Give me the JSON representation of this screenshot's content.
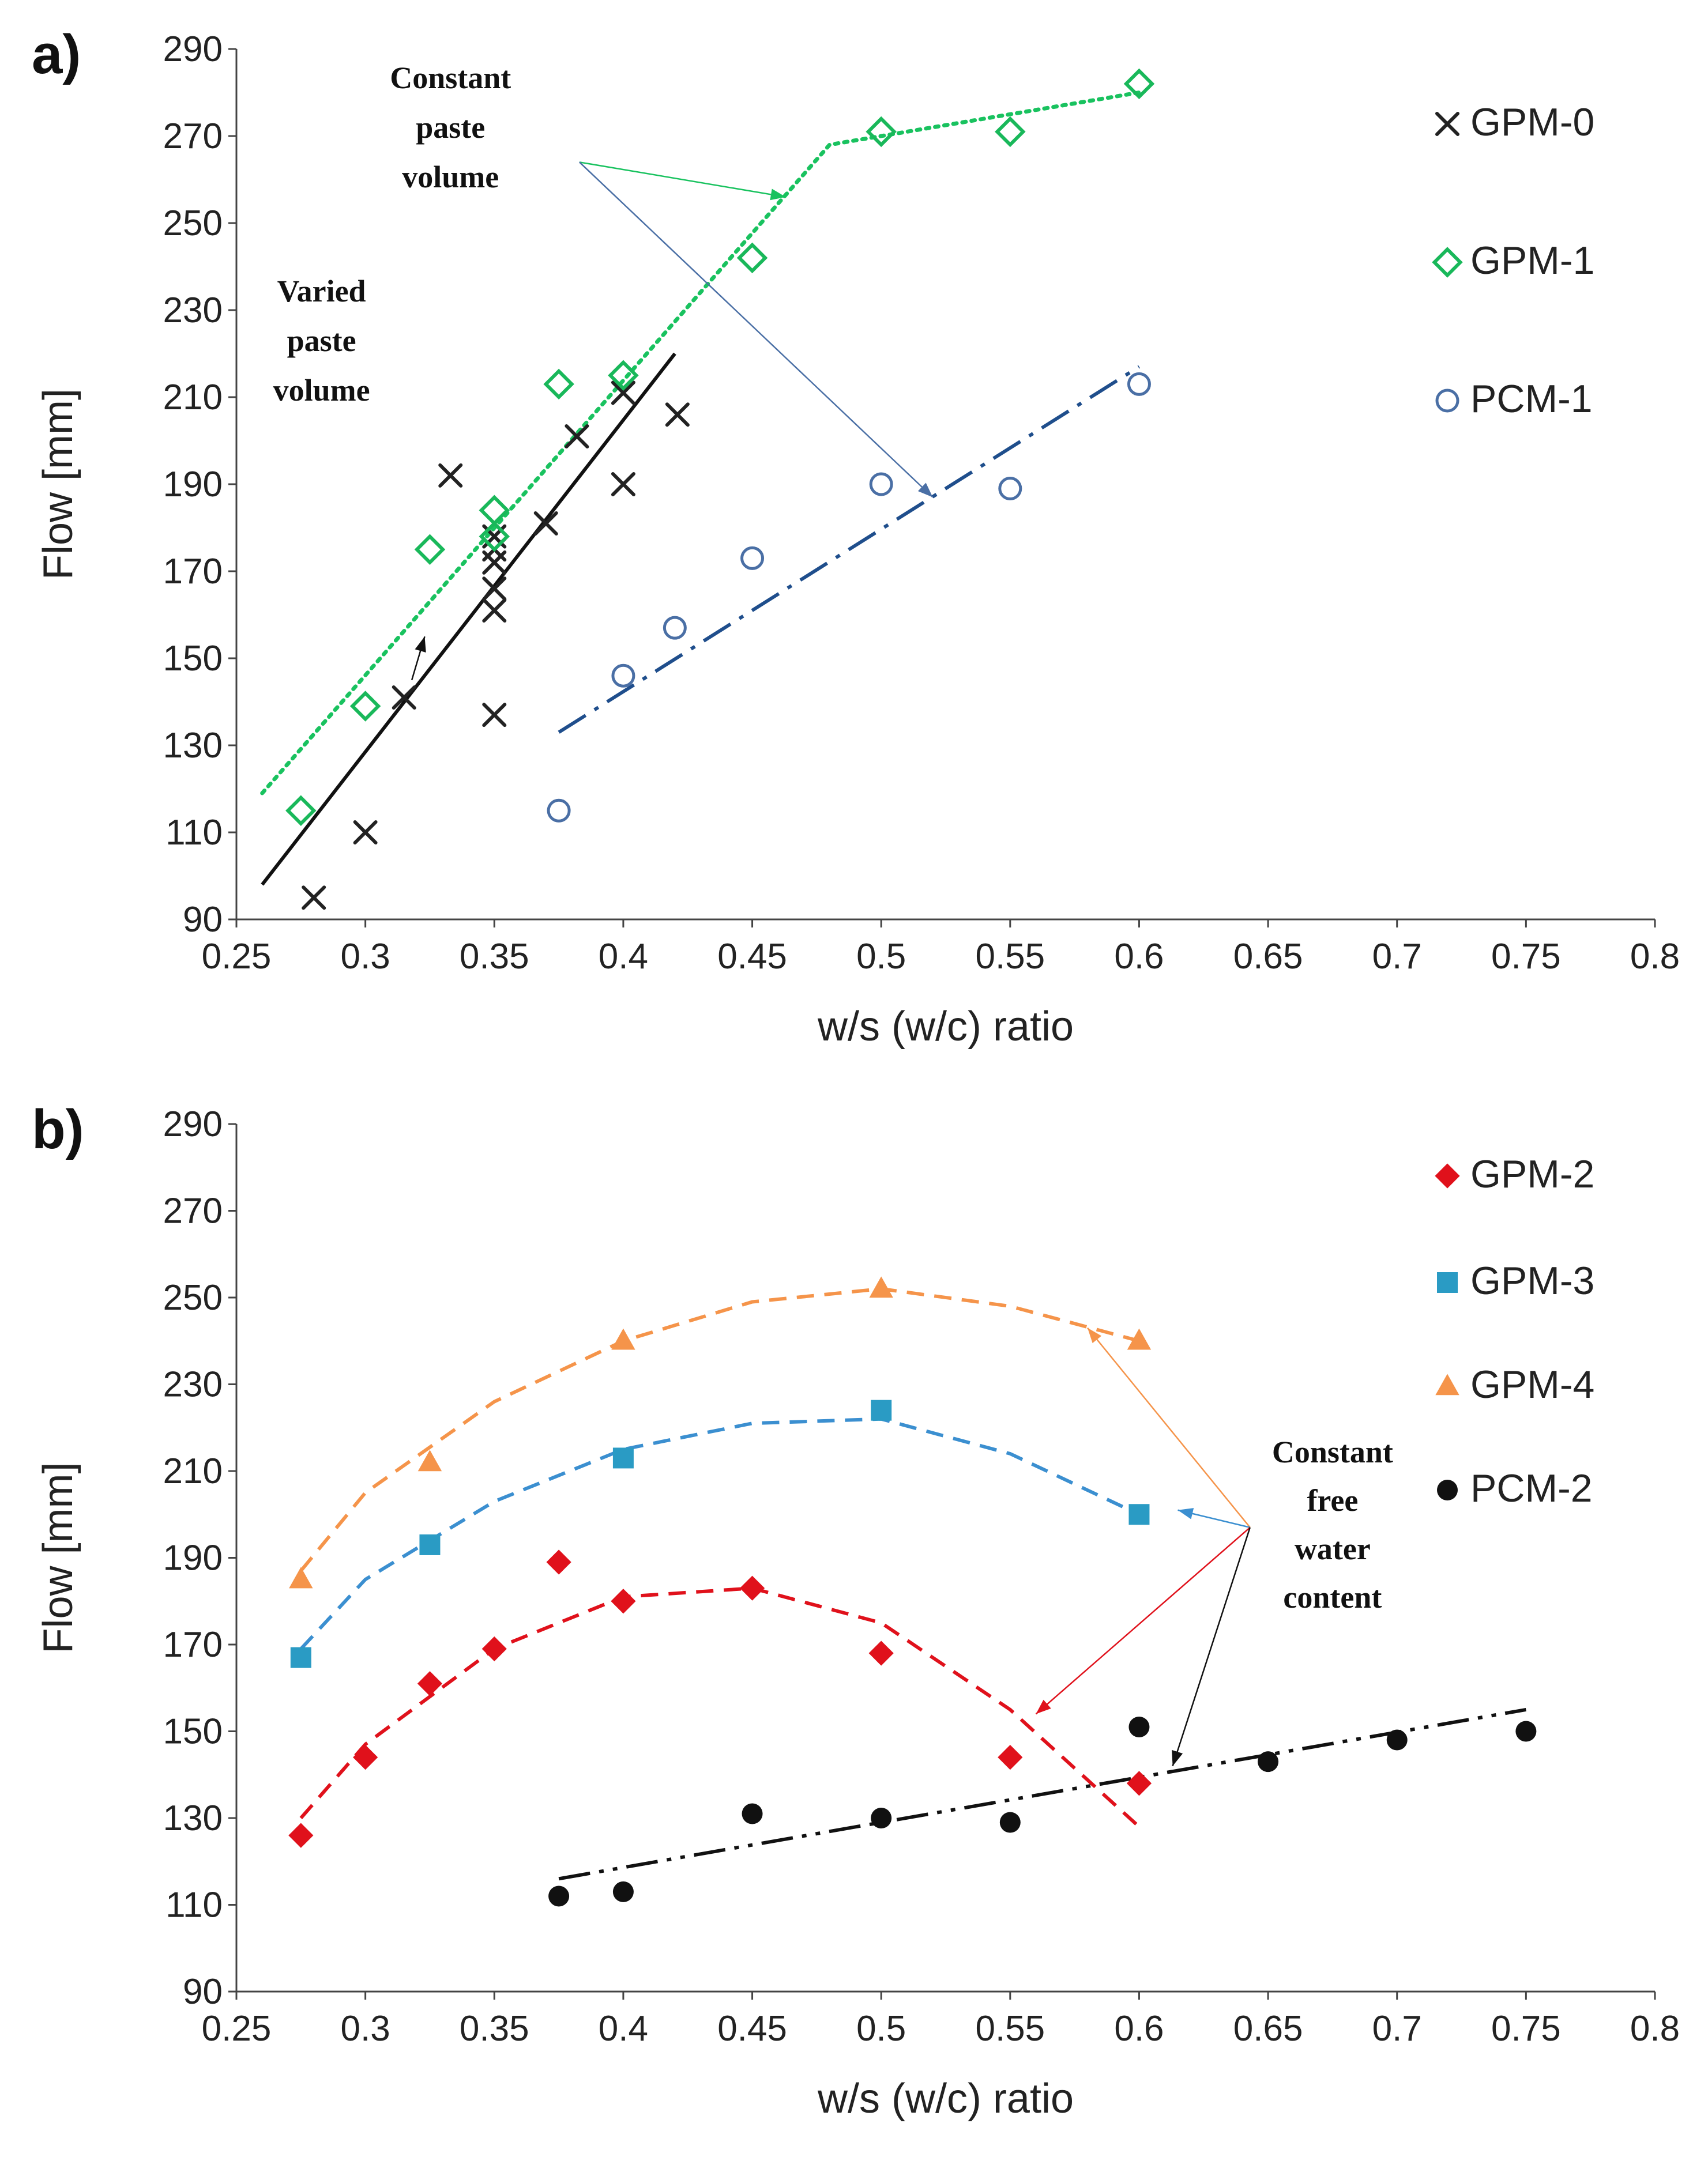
{
  "chart_data": [
    {
      "type": "scatter",
      "panel_label": "a)",
      "xlabel": "w/s (w/c) ratio",
      "ylabel": "Flow [mm]",
      "xlim": [
        0.25,
        0.8
      ],
      "ylim": [
        90,
        290
      ],
      "xticks": [
        "0.25",
        "0.3",
        "0.35",
        "0.4",
        "0.45",
        "0.5",
        "0.55",
        "0.6",
        "0.65",
        "0.7",
        "0.75",
        "0.8"
      ],
      "yticks": [
        "90",
        "110",
        "130",
        "150",
        "170",
        "190",
        "210",
        "230",
        "250",
        "270",
        "290"
      ],
      "grid": false,
      "legend_position": "top-right",
      "series": [
        {
          "name": "GPM-0",
          "marker": "x",
          "color": "#222222",
          "x": [
            0.28,
            0.3,
            0.315,
            0.333,
            0.35,
            0.35,
            0.35,
            0.35,
            0.35,
            0.35,
            0.37,
            0.382,
            0.4,
            0.4,
            0.421
          ],
          "y": [
            95,
            110,
            141,
            192,
            137,
            161,
            166,
            172,
            175,
            178,
            181,
            201,
            190,
            211,
            206
          ]
        },
        {
          "name": "GPM-1",
          "marker": "diamond-open",
          "color": "#19b85a",
          "x": [
            0.275,
            0.3,
            0.325,
            0.35,
            0.35,
            0.375,
            0.4,
            0.45,
            0.5,
            0.55,
            0.6
          ],
          "y": [
            115,
            139,
            175,
            178,
            184,
            213,
            215,
            242,
            271,
            271,
            282
          ]
        },
        {
          "name": "PCM-1",
          "marker": "circle-open",
          "color": "#4a6fa5",
          "x": [
            0.375,
            0.4,
            0.42,
            0.45,
            0.5,
            0.55,
            0.6
          ],
          "y": [
            115,
            146,
            157,
            173,
            190,
            189,
            213
          ]
        }
      ],
      "trendlines": [
        {
          "series": "GPM-0",
          "style": "solid",
          "color": "#111111",
          "x": [
            0.26,
            0.42
          ],
          "y": [
            98,
            220
          ]
        },
        {
          "series": "GPM-1",
          "style": "dotted",
          "color": "#19c25f",
          "x": [
            0.26,
            0.48,
            0.5,
            0.6
          ],
          "y": [
            119,
            268,
            270,
            280
          ]
        },
        {
          "series": "PCM-1",
          "style": "dash-dot",
          "color": "#1f4e8c",
          "x": [
            0.375,
            0.6
          ],
          "y": [
            133,
            217
          ]
        }
      ],
      "annotations": [
        {
          "lines": [
            "Constant",
            "paste",
            "volume"
          ],
          "x": 0.333,
          "y": 281
        },
        {
          "lines": [
            "Varied",
            "paste",
            "volume"
          ],
          "x": 0.283,
          "y": 232
        }
      ]
    },
    {
      "type": "scatter",
      "panel_label": "b)",
      "xlabel": "w/s (w/c) ratio",
      "ylabel": "Flow [mm]",
      "xlim": [
        0.25,
        0.8
      ],
      "ylim": [
        90,
        290
      ],
      "xticks": [
        "0.25",
        "0.3",
        "0.35",
        "0.4",
        "0.45",
        "0.5",
        "0.55",
        "0.6",
        "0.65",
        "0.7",
        "0.75",
        "0.8"
      ],
      "yticks": [
        "90",
        "110",
        "130",
        "150",
        "170",
        "190",
        "210",
        "230",
        "250",
        "270",
        "290"
      ],
      "grid": false,
      "legend_position": "top-right",
      "series": [
        {
          "name": "GPM-2",
          "marker": "diamond-filled",
          "color": "#e0111b",
          "x": [
            0.275,
            0.3,
            0.325,
            0.35,
            0.375,
            0.4,
            0.45,
            0.5,
            0.55,
            0.6
          ],
          "y": [
            126,
            144,
            161,
            169,
            189,
            180,
            183,
            168,
            144,
            138
          ]
        },
        {
          "name": "GPM-3",
          "marker": "square-filled",
          "color": "#2a9bc4",
          "x": [
            0.275,
            0.325,
            0.4,
            0.5,
            0.6
          ],
          "y": [
            167,
            193,
            213,
            224,
            200
          ]
        },
        {
          "name": "GPM-4",
          "marker": "triangle-filled",
          "color": "#f5944a",
          "x": [
            0.275,
            0.325,
            0.4,
            0.5,
            0.6
          ],
          "y": [
            185,
            212,
            240,
            252,
            240
          ]
        },
        {
          "name": "PCM-2",
          "marker": "circle-filled",
          "color": "#111111",
          "x": [
            0.375,
            0.4,
            0.45,
            0.5,
            0.55,
            0.6,
            0.65,
            0.7,
            0.75
          ],
          "y": [
            112,
            113,
            131,
            130,
            129,
            151,
            143,
            148,
            150
          ]
        }
      ],
      "trendlines": [
        {
          "series": "GPM-2",
          "style": "dashed",
          "color": "#e0111b",
          "x": [
            0.275,
            0.3,
            0.35,
            0.4,
            0.45,
            0.5,
            0.55,
            0.6
          ],
          "y": [
            130,
            147,
            169,
            181,
            183,
            175,
            155,
            128
          ]
        },
        {
          "series": "GPM-3",
          "style": "dashed",
          "color": "#3b8fd0",
          "x": [
            0.275,
            0.3,
            0.35,
            0.4,
            0.45,
            0.5,
            0.55,
            0.6
          ],
          "y": [
            169,
            185,
            203,
            215,
            221,
            222,
            214,
            200
          ]
        },
        {
          "series": "GPM-4",
          "style": "dashed",
          "color": "#f5944a",
          "x": [
            0.275,
            0.3,
            0.35,
            0.4,
            0.45,
            0.5,
            0.55,
            0.6
          ],
          "y": [
            187,
            205,
            226,
            240,
            249,
            252,
            248,
            240
          ]
        },
        {
          "series": "PCM-2",
          "style": "dash-dot-dot",
          "color": "#111111",
          "x": [
            0.375,
            0.75
          ],
          "y": [
            116,
            155
          ]
        }
      ],
      "annotations": [
        {
          "lines": [
            "Constant",
            "free",
            "water",
            "content"
          ],
          "x": 0.675,
          "y": 212
        }
      ]
    }
  ]
}
